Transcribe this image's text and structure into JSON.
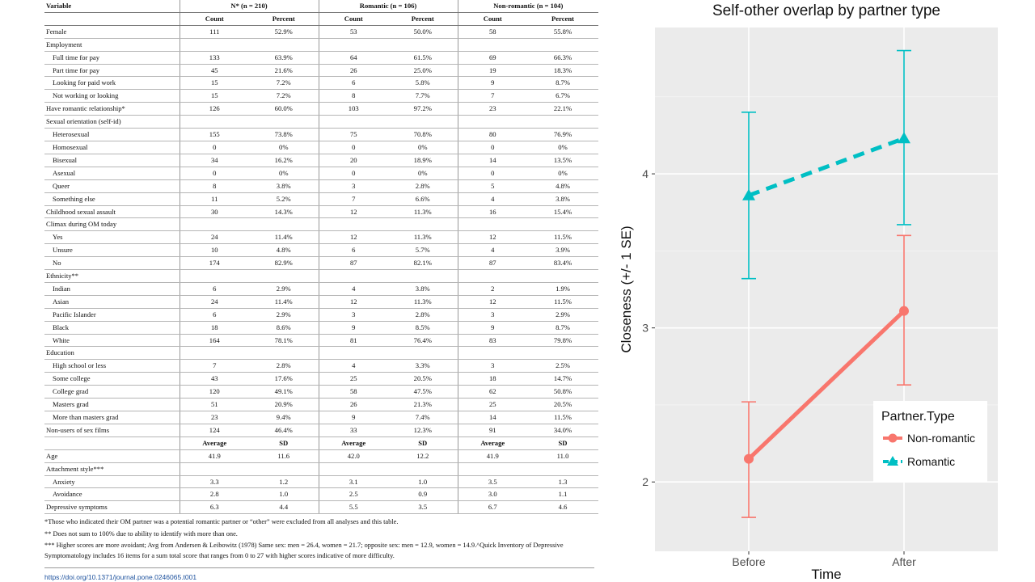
{
  "table": {
    "header_groups": [
      {
        "label": "Variable"
      },
      {
        "label": "N* (n = 210)"
      },
      {
        "label": "Romantic (n = 106)"
      },
      {
        "label": "Non-romantic (n = 104)"
      }
    ],
    "subheader": [
      "",
      "Count",
      "Percent",
      "Count",
      "Percent",
      "Count",
      "Percent"
    ],
    "rows": [
      {
        "label": "Female",
        "indent": false,
        "cells": [
          "111",
          "52.9%",
          "53",
          "50.0%",
          "58",
          "55.8%"
        ]
      },
      {
        "label": "Employment",
        "indent": false,
        "cells": [
          "",
          "",
          "",
          "",
          "",
          ""
        ]
      },
      {
        "label": "Full time for pay",
        "indent": true,
        "cells": [
          "133",
          "63.9%",
          "64",
          "61.5%",
          "69",
          "66.3%"
        ]
      },
      {
        "label": "Part time for pay",
        "indent": true,
        "cells": [
          "45",
          "21.6%",
          "26",
          "25.0%",
          "19",
          "18.3%"
        ]
      },
      {
        "label": "Looking for paid work",
        "indent": true,
        "cells": [
          "15",
          "7.2%",
          "6",
          "5.8%",
          "9",
          "8.7%"
        ]
      },
      {
        "label": "Not working or looking",
        "indent": true,
        "cells": [
          "15",
          "7.2%",
          "8",
          "7.7%",
          "7",
          "6.7%"
        ]
      },
      {
        "label": "Have romantic relationship*",
        "indent": false,
        "cells": [
          "126",
          "60.0%",
          "103",
          "97.2%",
          "23",
          "22.1%"
        ]
      },
      {
        "label": "Sexual orientation (self-id)",
        "indent": false,
        "cells": [
          "",
          "",
          "",
          "",
          "",
          ""
        ]
      },
      {
        "label": "Heterosexual",
        "indent": true,
        "cells": [
          "155",
          "73.8%",
          "75",
          "70.8%",
          "80",
          "76.9%"
        ]
      },
      {
        "label": "Homosexual",
        "indent": true,
        "cells": [
          "0",
          "0%",
          "0",
          "0%",
          "0",
          "0%"
        ]
      },
      {
        "label": "Bisexual",
        "indent": true,
        "cells": [
          "34",
          "16.2%",
          "20",
          "18.9%",
          "14",
          "13.5%"
        ]
      },
      {
        "label": "Asexual",
        "indent": true,
        "cells": [
          "0",
          "0%",
          "0",
          "0%",
          "0",
          "0%"
        ]
      },
      {
        "label": "Queer",
        "indent": true,
        "cells": [
          "8",
          "3.8%",
          "3",
          "2.8%",
          "5",
          "4.8%"
        ]
      },
      {
        "label": "Something else",
        "indent": true,
        "cells": [
          "11",
          "5.2%",
          "7",
          "6.6%",
          "4",
          "3.8%"
        ]
      },
      {
        "label": "Childhood sexual assault",
        "indent": false,
        "cells": [
          "30",
          "14.3%",
          "12",
          "11.3%",
          "16",
          "15.4%"
        ]
      },
      {
        "label": "Climax during OM today",
        "indent": false,
        "cells": [
          "",
          "",
          "",
          "",
          "",
          ""
        ]
      },
      {
        "label": "Yes",
        "indent": true,
        "cells": [
          "24",
          "11.4%",
          "12",
          "11.3%",
          "12",
          "11.5%"
        ]
      },
      {
        "label": "Unsure",
        "indent": true,
        "cells": [
          "10",
          "4.8%",
          "6",
          "5.7%",
          "4",
          "3.9%"
        ]
      },
      {
        "label": "No",
        "indent": true,
        "cells": [
          "174",
          "82.9%",
          "87",
          "82.1%",
          "87",
          "83.4%"
        ]
      },
      {
        "label": "Ethnicity**",
        "indent": false,
        "cells": [
          "",
          "",
          "",
          "",
          "",
          ""
        ]
      },
      {
        "label": "Indian",
        "indent": true,
        "cells": [
          "6",
          "2.9%",
          "4",
          "3.8%",
          "2",
          "1.9%"
        ]
      },
      {
        "label": "Asian",
        "indent": true,
        "cells": [
          "24",
          "11.4%",
          "12",
          "11.3%",
          "12",
          "11.5%"
        ]
      },
      {
        "label": "Pacific Islander",
        "indent": true,
        "cells": [
          "6",
          "2.9%",
          "3",
          "2.8%",
          "3",
          "2.9%"
        ]
      },
      {
        "label": "Black",
        "indent": true,
        "cells": [
          "18",
          "8.6%",
          "9",
          "8.5%",
          "9",
          "8.7%"
        ]
      },
      {
        "label": "White",
        "indent": true,
        "cells": [
          "164",
          "78.1%",
          "81",
          "76.4%",
          "83",
          "79.8%"
        ]
      },
      {
        "label": "Education",
        "indent": false,
        "cells": [
          "",
          "",
          "",
          "",
          "",
          ""
        ]
      },
      {
        "label": "High school or less",
        "indent": true,
        "cells": [
          "7",
          "2.8%",
          "4",
          "3.3%",
          "3",
          "2.5%"
        ]
      },
      {
        "label": "Some college",
        "indent": true,
        "cells": [
          "43",
          "17.6%",
          "25",
          "20.5%",
          "18",
          "14.7%"
        ]
      },
      {
        "label": "College grad",
        "indent": true,
        "cells": [
          "120",
          "49.1%",
          "58",
          "47.5%",
          "62",
          "50.8%"
        ]
      },
      {
        "label": "Masters grad",
        "indent": true,
        "cells": [
          "51",
          "20.9%",
          "26",
          "21.3%",
          "25",
          "20.5%"
        ]
      },
      {
        "label": "More than masters grad",
        "indent": true,
        "cells": [
          "23",
          "9.4%",
          "9",
          "7.4%",
          "14",
          "11.5%"
        ]
      },
      {
        "label": "Non-users of sex films",
        "indent": false,
        "cells": [
          "124",
          "46.4%",
          "33",
          "12.3%",
          "91",
          "34.0%"
        ]
      },
      {
        "label": "",
        "indent": false,
        "subheader": true,
        "cells": [
          "Average",
          "SD",
          "Average",
          "SD",
          "Average",
          "SD"
        ]
      },
      {
        "label": "Age",
        "indent": false,
        "cells": [
          "41.9",
          "11.6",
          "42.0",
          "12.2",
          "41.9",
          "11.0"
        ]
      },
      {
        "label": "Attachment style***",
        "indent": false,
        "cells": [
          "",
          "",
          "",
          "",
          "",
          ""
        ]
      },
      {
        "label": "Anxiety",
        "indent": true,
        "cells": [
          "3.3",
          "1.2",
          "3.1",
          "1.0",
          "3.5",
          "1.3"
        ]
      },
      {
        "label": "Avoidance",
        "indent": true,
        "cells": [
          "2.8",
          "1.0",
          "2.5",
          "0.9",
          "3.0",
          "1.1"
        ]
      },
      {
        "label": "Depressive symptoms",
        "indent": false,
        "cells": [
          "6.3",
          "4.4",
          "5.5",
          "3.5",
          "6.7",
          "4.6"
        ]
      }
    ]
  },
  "footnotes": [
    "*Those who indicated their OM partner was a potential romantic partner or “other” were excluded from all analyses and this table.",
    "** Does not sum to 100% due to ability to identify with more than one.",
    "*** Higher scores are more avoidant; Avg from Andersen & Leibowitz (1978) Same sex: men = 26.4, women = 21.7; opposite sex: men = 12.9, women = 14.9.^Quick Inventory of Depressive Symptomatology includes 16 items for a sum total score that ranges from 0 to 27 with higher scores indicative of more difficulty."
  ],
  "doi": "https://doi.org/10.1371/journal.pone.0246065.t001",
  "chart_data": {
    "type": "line",
    "title": "Self-other overlap by partner type",
    "xlabel": "Time",
    "ylabel": "Closeness (+/- 1 SE)",
    "categories": [
      "Before",
      "After"
    ],
    "yticks": [
      2,
      3,
      4
    ],
    "ylim": [
      1.55,
      4.95
    ],
    "grid": true,
    "legend": {
      "title": "Partner.Type",
      "position": "bottom-right"
    },
    "series": [
      {
        "name": "Non-romantic",
        "values": [
          2.15,
          3.11
        ],
        "se_low": [
          1.77,
          2.63
        ],
        "se_high": [
          2.52,
          3.6
        ],
        "color": "#f8766d",
        "linestyle": "solid",
        "marker": "circle"
      },
      {
        "name": "Romantic",
        "values": [
          3.86,
          4.23
        ],
        "se_low": [
          3.32,
          3.67
        ],
        "se_high": [
          4.4,
          4.8
        ],
        "color": "#00bfc4",
        "linestyle": "dashed",
        "marker": "triangle"
      }
    ]
  }
}
